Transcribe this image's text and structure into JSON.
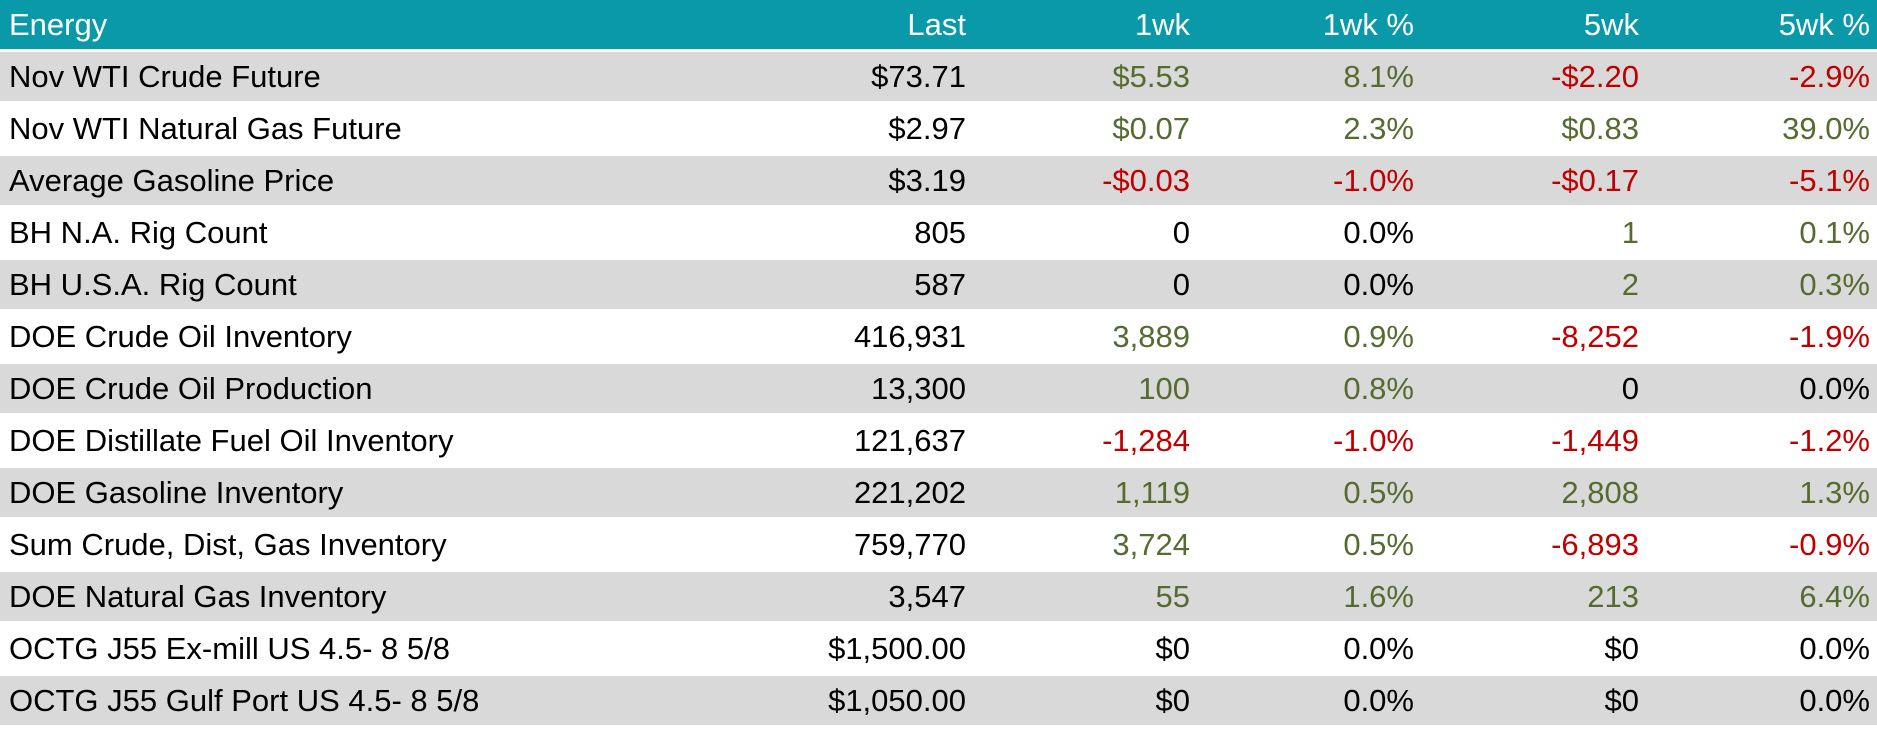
{
  "colors": {
    "header_bg": "#0999A8",
    "header_text": "#FFFFFF",
    "row_bg": "#FFFFFF",
    "row_alt_bg": "#D9D9D9",
    "positive": "#556B2F",
    "negative": "#C00000",
    "neutral": "#000000"
  },
  "table": {
    "columns": [
      {
        "key": "energy",
        "label": "Energy"
      },
      {
        "key": "last",
        "label": "Last"
      },
      {
        "key": "wk1",
        "label": "1wk"
      },
      {
        "key": "wk1pct",
        "label": "1wk %"
      },
      {
        "key": "wk5",
        "label": "5wk"
      },
      {
        "key": "wk5pct",
        "label": "5wk %"
      }
    ],
    "rows": [
      {
        "label": "Nov WTI Crude Future",
        "cells": [
          {
            "text": "$73.71",
            "tone": "neutral"
          },
          {
            "text": "$5.53",
            "tone": "positive"
          },
          {
            "text": "8.1%",
            "tone": "positive"
          },
          {
            "text": "-$2.20",
            "tone": "negative"
          },
          {
            "text": "-2.9%",
            "tone": "negative"
          }
        ]
      },
      {
        "label": "Nov WTI Natural Gas Future",
        "cells": [
          {
            "text": "$2.97",
            "tone": "neutral"
          },
          {
            "text": "$0.07",
            "tone": "positive"
          },
          {
            "text": "2.3%",
            "tone": "positive"
          },
          {
            "text": "$0.83",
            "tone": "positive"
          },
          {
            "text": "39.0%",
            "tone": "positive"
          }
        ]
      },
      {
        "label": "Average Gasoline Price",
        "cells": [
          {
            "text": "$3.19",
            "tone": "neutral"
          },
          {
            "text": "-$0.03",
            "tone": "negative"
          },
          {
            "text": "-1.0%",
            "tone": "negative"
          },
          {
            "text": "-$0.17",
            "tone": "negative"
          },
          {
            "text": "-5.1%",
            "tone": "negative"
          }
        ]
      },
      {
        "label": "BH N.A. Rig Count",
        "cells": [
          {
            "text": "805",
            "tone": "neutral"
          },
          {
            "text": "0",
            "tone": "neutral"
          },
          {
            "text": "0.0%",
            "tone": "neutral"
          },
          {
            "text": "1",
            "tone": "positive"
          },
          {
            "text": "0.1%",
            "tone": "positive"
          }
        ]
      },
      {
        "label": "BH U.S.A. Rig Count",
        "cells": [
          {
            "text": "587",
            "tone": "neutral"
          },
          {
            "text": "0",
            "tone": "neutral"
          },
          {
            "text": "0.0%",
            "tone": "neutral"
          },
          {
            "text": "2",
            "tone": "positive"
          },
          {
            "text": "0.3%",
            "tone": "positive"
          }
        ]
      },
      {
        "label": "DOE Crude Oil Inventory",
        "cells": [
          {
            "text": "416,931",
            "tone": "neutral"
          },
          {
            "text": "3,889",
            "tone": "positive"
          },
          {
            "text": "0.9%",
            "tone": "positive"
          },
          {
            "text": "-8,252",
            "tone": "negative"
          },
          {
            "text": "-1.9%",
            "tone": "negative"
          }
        ]
      },
      {
        "label": "DOE Crude Oil Production",
        "cells": [
          {
            "text": "13,300",
            "tone": "neutral"
          },
          {
            "text": "100",
            "tone": "positive"
          },
          {
            "text": "0.8%",
            "tone": "positive"
          },
          {
            "text": "0",
            "tone": "neutral"
          },
          {
            "text": "0.0%",
            "tone": "neutral"
          }
        ]
      },
      {
        "label": "DOE Distillate Fuel Oil Inventory",
        "cells": [
          {
            "text": "121,637",
            "tone": "neutral"
          },
          {
            "text": "-1,284",
            "tone": "negative"
          },
          {
            "text": "-1.0%",
            "tone": "negative"
          },
          {
            "text": "-1,449",
            "tone": "negative"
          },
          {
            "text": "-1.2%",
            "tone": "negative"
          }
        ]
      },
      {
        "label": "DOE Gasoline Inventory",
        "cells": [
          {
            "text": "221,202",
            "tone": "neutral"
          },
          {
            "text": "1,119",
            "tone": "positive"
          },
          {
            "text": "0.5%",
            "tone": "positive"
          },
          {
            "text": "2,808",
            "tone": "positive"
          },
          {
            "text": "1.3%",
            "tone": "positive"
          }
        ]
      },
      {
        "label": "Sum Crude, Dist, Gas Inventory",
        "cells": [
          {
            "text": "759,770",
            "tone": "neutral"
          },
          {
            "text": "3,724",
            "tone": "positive"
          },
          {
            "text": "0.5%",
            "tone": "positive"
          },
          {
            "text": "-6,893",
            "tone": "negative"
          },
          {
            "text": "-0.9%",
            "tone": "negative"
          }
        ]
      },
      {
        "label": "DOE Natural Gas Inventory",
        "cells": [
          {
            "text": "3,547",
            "tone": "neutral"
          },
          {
            "text": "55",
            "tone": "positive"
          },
          {
            "text": "1.6%",
            "tone": "positive"
          },
          {
            "text": "213",
            "tone": "positive"
          },
          {
            "text": "6.4%",
            "tone": "positive"
          }
        ]
      },
      {
        "label": "OCTG J55 Ex-mill US 4.5- 8 5/8",
        "cells": [
          {
            "text": "$1,500.00",
            "tone": "neutral"
          },
          {
            "text": "$0",
            "tone": "neutral"
          },
          {
            "text": "0.0%",
            "tone": "neutral"
          },
          {
            "text": "$0",
            "tone": "neutral"
          },
          {
            "text": "0.0%",
            "tone": "neutral"
          }
        ]
      },
      {
        "label": "OCTG J55 Gulf Port US 4.5- 8 5/8",
        "cells": [
          {
            "text": "$1,050.00",
            "tone": "neutral"
          },
          {
            "text": "$0",
            "tone": "neutral"
          },
          {
            "text": "0.0%",
            "tone": "neutral"
          },
          {
            "text": "$0",
            "tone": "neutral"
          },
          {
            "text": "0.0%",
            "tone": "neutral"
          }
        ]
      }
    ]
  },
  "chart_data": {
    "type": "table",
    "title": "Energy",
    "columns": [
      "Energy",
      "Last",
      "1wk",
      "1wk %",
      "5wk",
      "5wk %"
    ],
    "rows": [
      [
        "Nov WTI Crude Future",
        "$73.71",
        "$5.53",
        "8.1%",
        "-$2.20",
        "-2.9%"
      ],
      [
        "Nov WTI Natural Gas Future",
        "$2.97",
        "$0.07",
        "2.3%",
        "$0.83",
        "39.0%"
      ],
      [
        "Average Gasoline Price",
        "$3.19",
        "-$0.03",
        "-1.0%",
        "-$0.17",
        "-5.1%"
      ],
      [
        "BH N.A. Rig Count",
        "805",
        "0",
        "0.0%",
        "1",
        "0.1%"
      ],
      [
        "BH U.S.A. Rig Count",
        "587",
        "0",
        "0.0%",
        "2",
        "0.3%"
      ],
      [
        "DOE Crude Oil Inventory",
        "416,931",
        "3,889",
        "0.9%",
        "-8,252",
        "-1.9%"
      ],
      [
        "DOE Crude Oil Production",
        "13,300",
        "100",
        "0.8%",
        "0",
        "0.0%"
      ],
      [
        "DOE Distillate Fuel Oil Inventory",
        "121,637",
        "-1,284",
        "-1.0%",
        "-1,449",
        "-1.2%"
      ],
      [
        "DOE Gasoline Inventory",
        "221,202",
        "1,119",
        "0.5%",
        "2,808",
        "1.3%"
      ],
      [
        "Sum Crude, Dist, Gas Inventory",
        "759,770",
        "3,724",
        "0.5%",
        "-6,893",
        "-0.9%"
      ],
      [
        "DOE Natural Gas Inventory",
        "3,547",
        "55",
        "1.6%",
        "213",
        "6.4%"
      ],
      [
        "OCTG J55 Ex-mill US 4.5- 8 5/8",
        "$1,500.00",
        "$0",
        "0.0%",
        "$0",
        "0.0%"
      ],
      [
        "OCTG J55 Gulf Port US 4.5- 8 5/8",
        "$1,050.00",
        "$0",
        "0.0%",
        "$0",
        "0.0%"
      ]
    ],
    "layout": {
      "header_fill": "#0999A8",
      "alternating_row_fill": "#D9D9D9",
      "positive_value_color": "#556B2F",
      "negative_value_color": "#C00000",
      "value_alignment": "right"
    }
  }
}
